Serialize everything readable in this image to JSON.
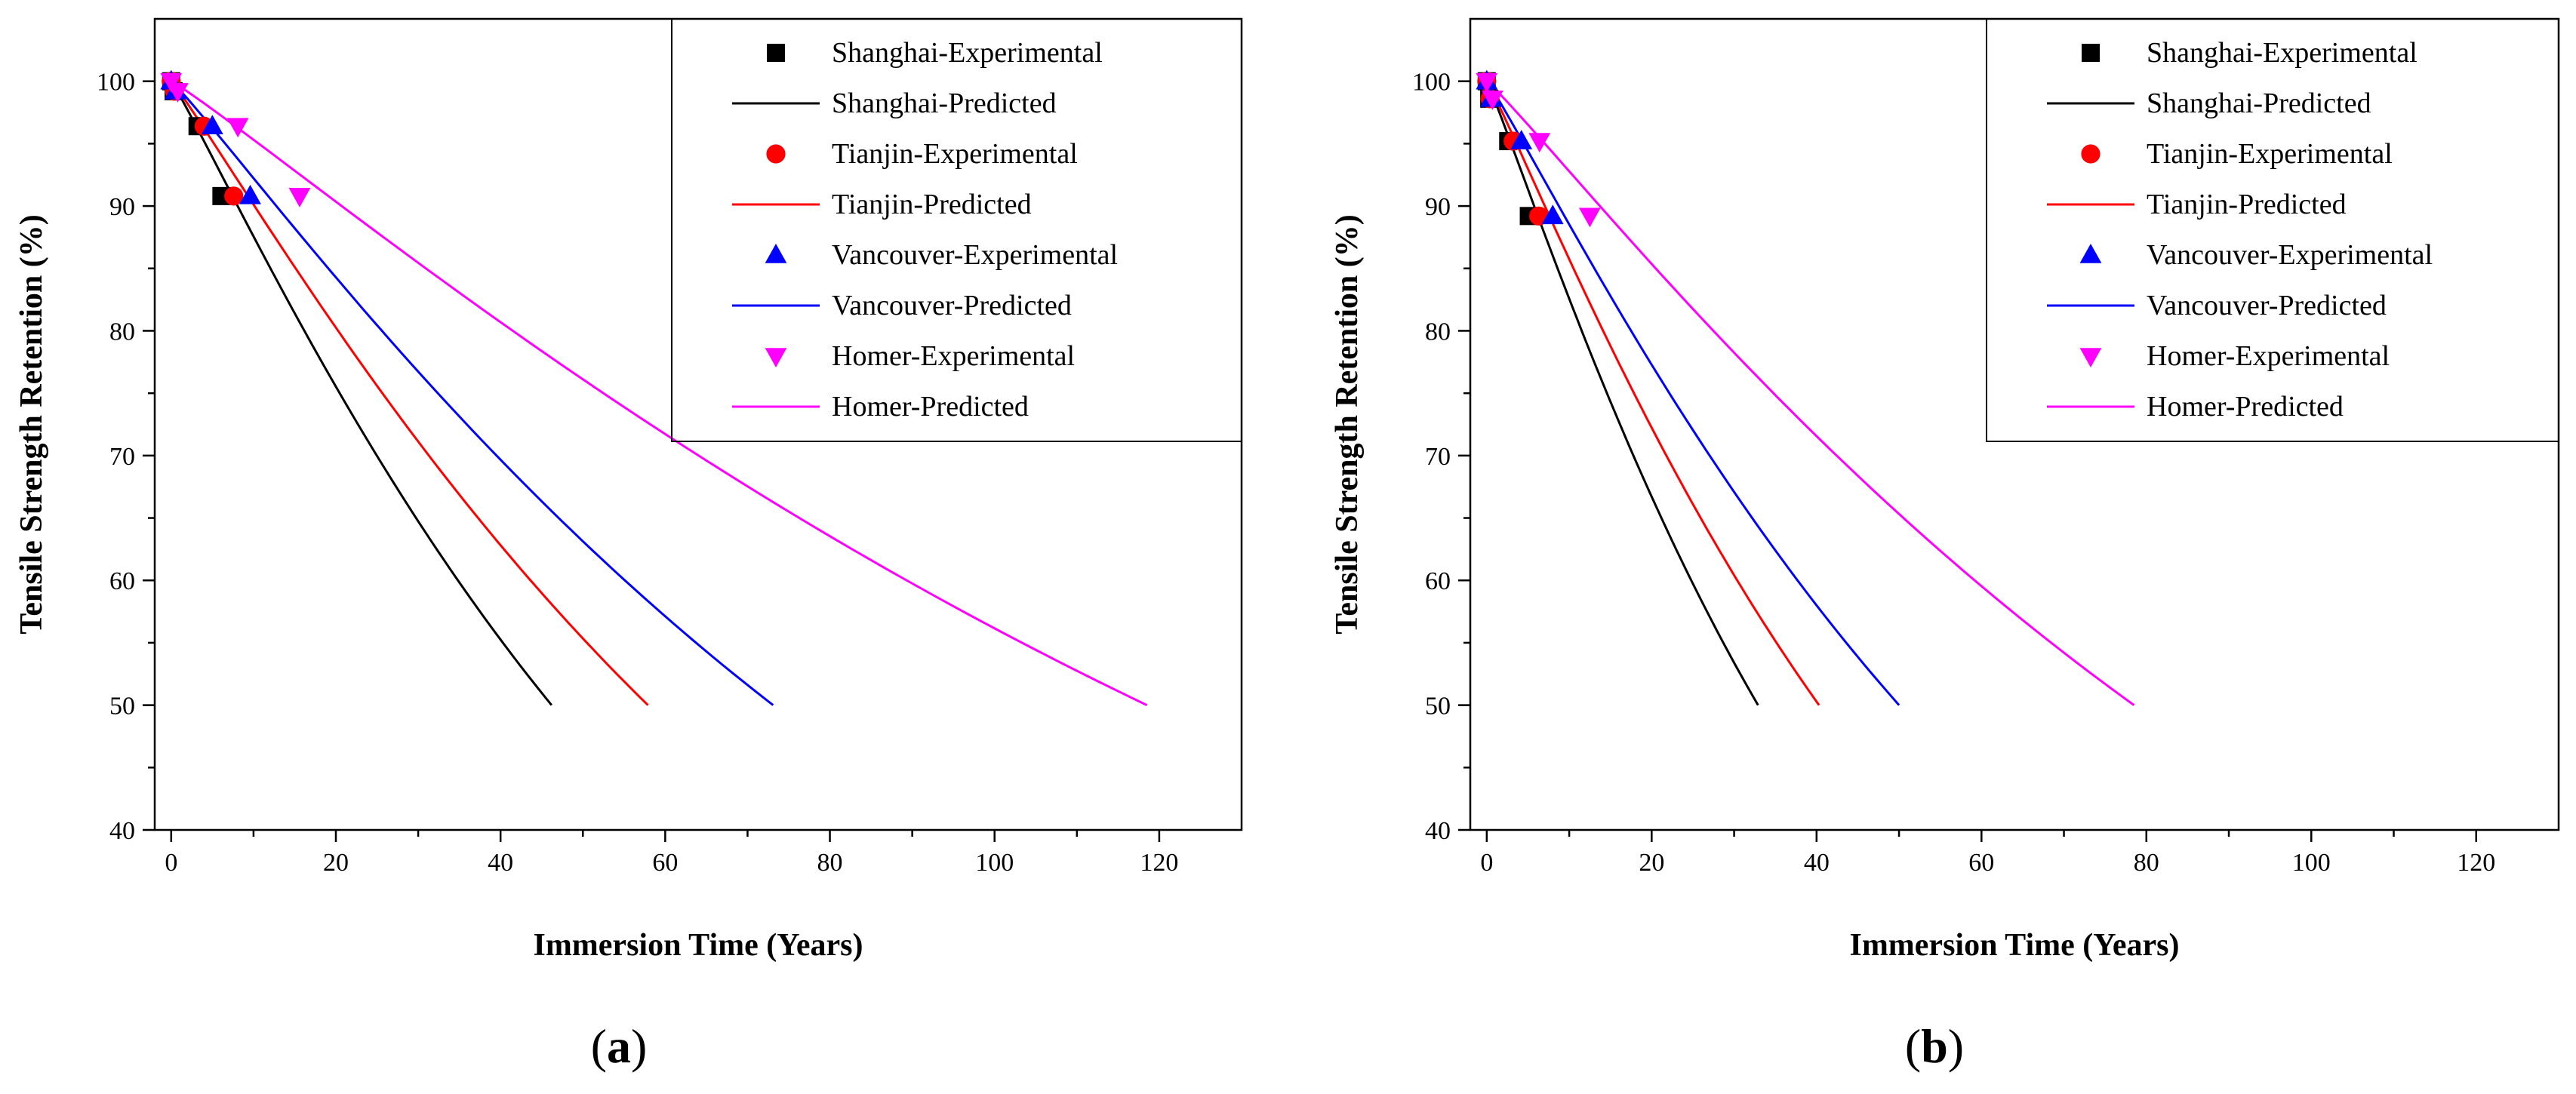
{
  "chart_data": [
    {
      "type": "line",
      "panel_label_open": "(",
      "panel_label": "a",
      "panel_label_close": ")",
      "xlabel": "Immersion Time (Years)",
      "ylabel": "Tensile Strength Retention (%)",
      "xlim": [
        -2,
        130
      ],
      "ylim": [
        40,
        105
      ],
      "xticks": [
        0,
        20,
        40,
        60,
        80,
        100,
        120
      ],
      "yticks": [
        40,
        50,
        60,
        70,
        80,
        90,
        100
      ],
      "legend_position": "top-right",
      "series": [
        {
          "name": "Shanghai",
          "color": "#000000",
          "experimental": {
            "label": "Shanghai-Experimental",
            "marker": "square",
            "x": [
              0,
              0.3,
              3.2,
              6.1
            ],
            "y": [
              100,
              99.2,
              96.4,
              90.8
            ]
          },
          "predicted": {
            "label": "Shanghai-Predicted",
            "t50": 46.2
          }
        },
        {
          "name": "Tianjin",
          "color": "#ff0000",
          "experimental": {
            "label": "Tianjin-Experimental",
            "marker": "circle",
            "x": [
              0,
              0.4,
              4.0,
              7.6
            ],
            "y": [
              100,
              99.2,
              96.4,
              90.8
            ]
          },
          "predicted": {
            "label": "Tianjin-Predicted",
            "t50": 57.9
          }
        },
        {
          "name": "Vancouver",
          "color": "#0000ff",
          "experimental": {
            "label": "Vancouver-Experimental",
            "marker": "triangle-up",
            "x": [
              0,
              0.5,
              5.0,
              9.6
            ],
            "y": [
              100,
              99.2,
              96.4,
              90.8
            ]
          },
          "predicted": {
            "label": "Vancouver-Predicted",
            "t50": 73.1
          }
        },
        {
          "name": "Homer",
          "color": "#ff00ff",
          "experimental": {
            "label": "Homer-Experimental",
            "marker": "triangle-down",
            "x": [
              0,
              0.8,
              8.1,
              15.6
            ],
            "y": [
              100,
              99.2,
              96.4,
              90.8
            ]
          },
          "predicted": {
            "label": "Homer-Predicted",
            "t50": 118.5
          }
        }
      ]
    },
    {
      "type": "line",
      "panel_label_open": "(",
      "panel_label": "b",
      "panel_label_close": ")",
      "xlabel": "Immersion Time (Years)",
      "ylabel": "Tensile Strength Retention (%)",
      "xlim": [
        -2,
        130
      ],
      "ylim": [
        40,
        105
      ],
      "xticks": [
        0,
        20,
        40,
        60,
        80,
        100,
        120
      ],
      "yticks": [
        40,
        50,
        60,
        70,
        80,
        90,
        100
      ],
      "legend_position": "top-right",
      "series": [
        {
          "name": "Shanghai",
          "color": "#000000",
          "experimental": {
            "label": "Shanghai-Experimental",
            "marker": "square",
            "x": [
              0,
              0.3,
              2.6,
              5.1
            ],
            "y": [
              100,
              98.6,
              95.2,
              89.2
            ]
          },
          "predicted": {
            "label": "Shanghai-Predicted",
            "t50": 32.9
          }
        },
        {
          "name": "Tianjin",
          "color": "#ff0000",
          "experimental": {
            "label": "Tianjin-Experimental",
            "marker": "circle",
            "x": [
              0,
              0.4,
              3.2,
              6.3
            ],
            "y": [
              100,
              98.6,
              95.2,
              89.2
            ]
          },
          "predicted": {
            "label": "Tianjin-Predicted",
            "t50": 40.3
          }
        },
        {
          "name": "Vancouver",
          "color": "#0000ff",
          "experimental": {
            "label": "Vancouver-Experimental",
            "marker": "triangle-up",
            "x": [
              0,
              0.5,
              4.2,
              8.0
            ],
            "y": [
              100,
              98.6,
              95.2,
              89.2
            ]
          },
          "predicted": {
            "label": "Vancouver-Predicted",
            "t50": 50.0
          }
        },
        {
          "name": "Homer",
          "color": "#ff00ff",
          "experimental": {
            "label": "Homer-Experimental",
            "marker": "triangle-down",
            "x": [
              0,
              0.7,
              6.4,
              12.5
            ],
            "y": [
              100,
              98.6,
              95.2,
              89.2
            ]
          },
          "predicted": {
            "label": "Homer-Predicted",
            "t50": 78.5
          }
        }
      ]
    }
  ]
}
